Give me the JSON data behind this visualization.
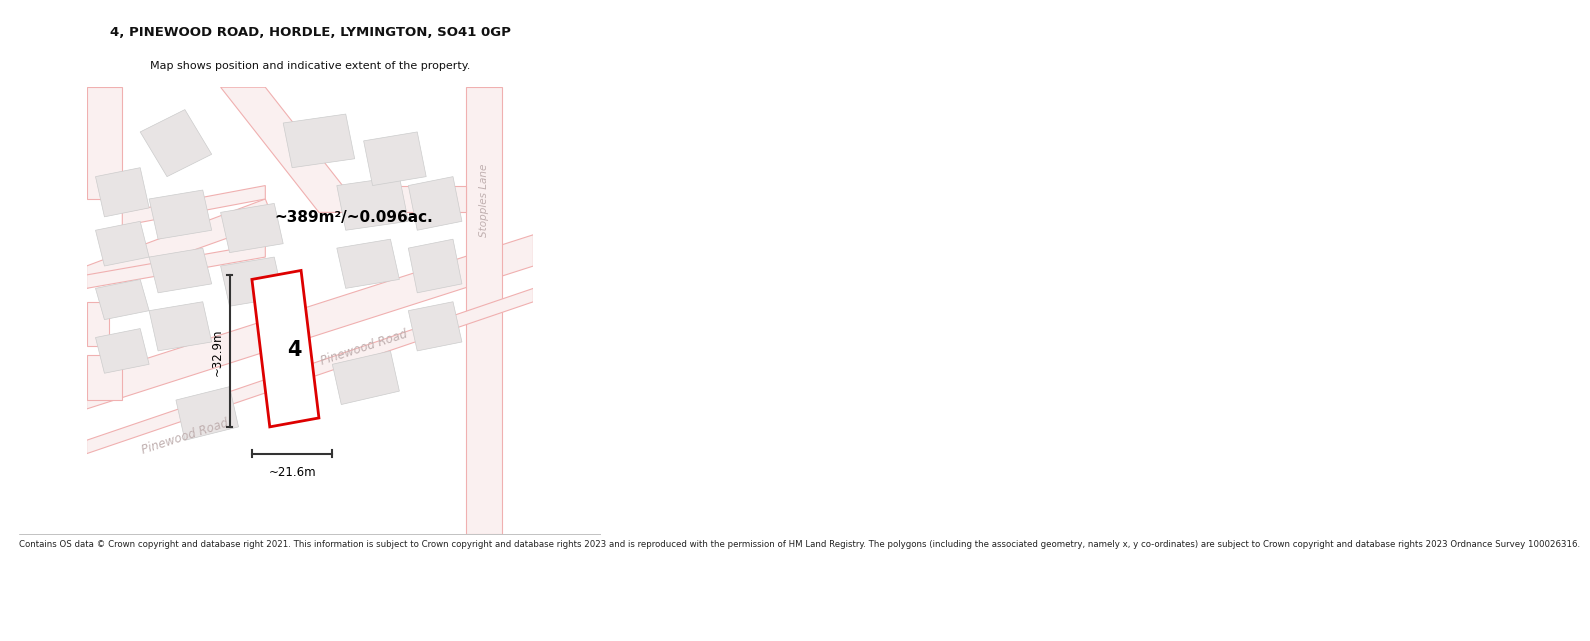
{
  "title_line1": "4, PINEWOOD ROAD, HORDLE, LYMINGTON, SO41 0GP",
  "title_line2": "Map shows position and indicative extent of the property.",
  "area_label": "~389m²/~0.096ac.",
  "width_label": "~21.6m",
  "height_label": "~32.9m",
  "plot_number": "4",
  "road_label_upper": "Pinewood Road",
  "road_label_lower": "Pinewood Road",
  "lane_label": "Stopples Lane",
  "footer": "Contains OS data © Crown copyright and database right 2021. This information is subject to Crown copyright and database rights 2023 and is reproduced with the permission of HM Land Registry. The polygons (including the associated geometry, namely x, y co-ordinates) are subject to Crown copyright and database rights 2023 Ordnance Survey 100026316.",
  "bg_color": "#ffffff",
  "map_bg": "#ffffff",
  "road_line_color": "#f0b0b0",
  "road_fill_color": "#faf0f0",
  "building_face_color": "#e8e4e4",
  "building_edge_color": "#cccccc",
  "plot_outline_color": "#dd0000",
  "dim_line_color": "#333333",
  "text_color": "#000000",
  "road_text_color": "#c0b0b0",
  "title_color": "#111111"
}
